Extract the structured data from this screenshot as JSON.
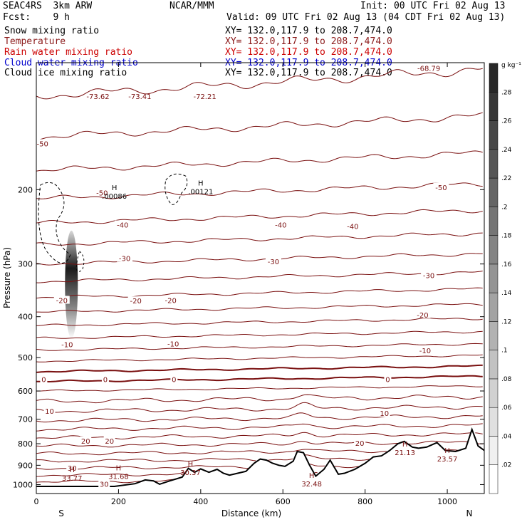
{
  "header": {
    "model": "SEAC4RS  3km ARW",
    "org": "NCAR/MMM",
    "init": "Init: 00 UTC Fri 02 Aug 13",
    "fcst": "Fcst:    9 h",
    "valid": "Valid: 09 UTC Fri 02 Aug 13 (04 CDT Fri 02 Aug 13)"
  },
  "legend": [
    {
      "field": "Snow mixing ratio",
      "xy": "XY= 132.0,117.9 to 208.7,474.0",
      "color": "#000000"
    },
    {
      "field": "Temperature",
      "xy": "XY= 132.0,117.9 to 208.7,474.0",
      "color": "#8b1a1a"
    },
    {
      "field": "Rain water mixing ratio",
      "xy": "XY= 132.0,117.9 to 208.7,474.0",
      "color": "#cc0000"
    },
    {
      "field": "Cloud water mixing ratio",
      "xy": "XY= 132.0,117.9 to 208.7,474.0",
      "color": "#0000cc"
    },
    {
      "field": "Cloud ice mixing ratio",
      "xy": "XY= 132.0,117.9 to 208.7,474.0",
      "color": "#000000"
    }
  ],
  "chart_data": {
    "type": "contour",
    "xlabel": "Distance (km)",
    "ylabel": "Pressure (hPa)",
    "xlim": [
      0,
      1090
    ],
    "ylim": [
      1050,
      100
    ],
    "y_scale": "log-pressure",
    "x_ticks": [
      0,
      200,
      400,
      600,
      800,
      1000
    ],
    "y_ticks": [
      200,
      300,
      400,
      500,
      600,
      700,
      800,
      900,
      1000
    ],
    "x_end_labels": {
      "left": "S",
      "right": "N"
    },
    "colorbar": {
      "unit": "g kg⁻¹",
      "ticks": [
        ".02",
        ".04",
        ".06",
        ".08",
        ".1",
        ".12",
        ".14",
        ".16",
        ".18",
        ".2",
        ".22",
        ".24",
        ".26",
        ".28"
      ],
      "min": 0,
      "max": 0.3
    },
    "temperature_levels": [
      40,
      30,
      20,
      10,
      0,
      -10,
      -20,
      -30,
      -40,
      -50,
      -60,
      -70
    ],
    "contour_labels": [
      {
        "text": "-50",
        "x": 15,
        "p": 156
      },
      {
        "text": "-50",
        "x": 160,
        "p": 204
      },
      {
        "text": "-50",
        "x": 985,
        "p": 198
      },
      {
        "text": "-40",
        "x": 210,
        "p": 243
      },
      {
        "text": "-40",
        "x": 595,
        "p": 243
      },
      {
        "text": "-40",
        "x": 770,
        "p": 245
      },
      {
        "text": "-30",
        "x": 215,
        "p": 292
      },
      {
        "text": "-30",
        "x": 577,
        "p": 297
      },
      {
        "text": "-30",
        "x": 955,
        "p": 320
      },
      {
        "text": "-20",
        "x": 62,
        "p": 367
      },
      {
        "text": "-20",
        "x": 242,
        "p": 368
      },
      {
        "text": "-20",
        "x": 327,
        "p": 367
      },
      {
        "text": "-20",
        "x": 940,
        "p": 397
      },
      {
        "text": "-10",
        "x": 75,
        "p": 467
      },
      {
        "text": "-10",
        "x": 333,
        "p": 465
      },
      {
        "text": "-10",
        "x": 946,
        "p": 483
      },
      {
        "text": "0",
        "x": 18,
        "p": 565
      },
      {
        "text": "0",
        "x": 168,
        "p": 565
      },
      {
        "text": "0",
        "x": 335,
        "p": 565
      },
      {
        "text": "0",
        "x": 855,
        "p": 565
      },
      {
        "text": "10",
        "x": 32,
        "p": 672
      },
      {
        "text": "10",
        "x": 847,
        "p": 680
      },
      {
        "text": "20",
        "x": 120,
        "p": 790
      },
      {
        "text": "20",
        "x": 178,
        "p": 790
      },
      {
        "text": "20",
        "x": 787,
        "p": 800
      },
      {
        "text": "30",
        "x": 87,
        "p": 917
      },
      {
        "text": "30",
        "x": 165,
        "p": 1000
      }
    ],
    "marks": [
      {
        "label": "H",
        "value": "33.77",
        "x": 87,
        "p": 942
      },
      {
        "label": "H",
        "value": "31.68",
        "x": 200,
        "p": 932
      },
      {
        "label": "H",
        "value": "30.37",
        "x": 375,
        "p": 913
      },
      {
        "label": "H",
        "value": "32.48",
        "x": 670,
        "p": 971
      },
      {
        "label": "H",
        "value": "21.13",
        "x": 897,
        "p": 819
      },
      {
        "label": "H",
        "value": "23.57",
        "x": 1000,
        "p": 848
      },
      {
        "label": "H",
        "value": ".00086",
        "x": 190,
        "p": 202
      },
      {
        "label": "H",
        "value": ".00121",
        "x": 400,
        "p": 197
      }
    ],
    "top_values": [
      {
        "text": "-73.62",
        "x": 150,
        "p": 120
      },
      {
        "text": "-73.41",
        "x": 252,
        "p": 120
      },
      {
        "text": "-72.21",
        "x": 410,
        "p": 120
      },
      {
        "text": "-68.79",
        "x": 955,
        "p": 103
      }
    ],
    "terrain": [
      [
        0,
        1010
      ],
      [
        190,
        1010
      ],
      [
        240,
        995
      ],
      [
        265,
        975
      ],
      [
        285,
        980
      ],
      [
        300,
        998
      ],
      [
        325,
        980
      ],
      [
        355,
        960
      ],
      [
        370,
        915
      ],
      [
        385,
        935
      ],
      [
        400,
        918
      ],
      [
        420,
        935
      ],
      [
        440,
        920
      ],
      [
        455,
        940
      ],
      [
        470,
        950
      ],
      [
        490,
        940
      ],
      [
        510,
        930
      ],
      [
        530,
        890
      ],
      [
        545,
        870
      ],
      [
        560,
        875
      ],
      [
        575,
        890
      ],
      [
        590,
        900
      ],
      [
        605,
        905
      ],
      [
        625,
        880
      ],
      [
        635,
        835
      ],
      [
        650,
        840
      ],
      [
        665,
        900
      ],
      [
        680,
        955
      ],
      [
        700,
        920
      ],
      [
        715,
        875
      ],
      [
        735,
        945
      ],
      [
        750,
        940
      ],
      [
        775,
        920
      ],
      [
        800,
        890
      ],
      [
        820,
        860
      ],
      [
        840,
        855
      ],
      [
        860,
        830
      ],
      [
        880,
        800
      ],
      [
        895,
        790
      ],
      [
        915,
        815
      ],
      [
        930,
        820
      ],
      [
        950,
        815
      ],
      [
        975,
        795
      ],
      [
        995,
        830
      ],
      [
        1020,
        835
      ],
      [
        1045,
        820
      ],
      [
        1060,
        740
      ],
      [
        1075,
        810
      ],
      [
        1090,
        830
      ]
    ],
    "snow_column": {
      "x": 75,
      "p_top": 250,
      "p_bottom": 450,
      "peak": 0.28
    }
  }
}
